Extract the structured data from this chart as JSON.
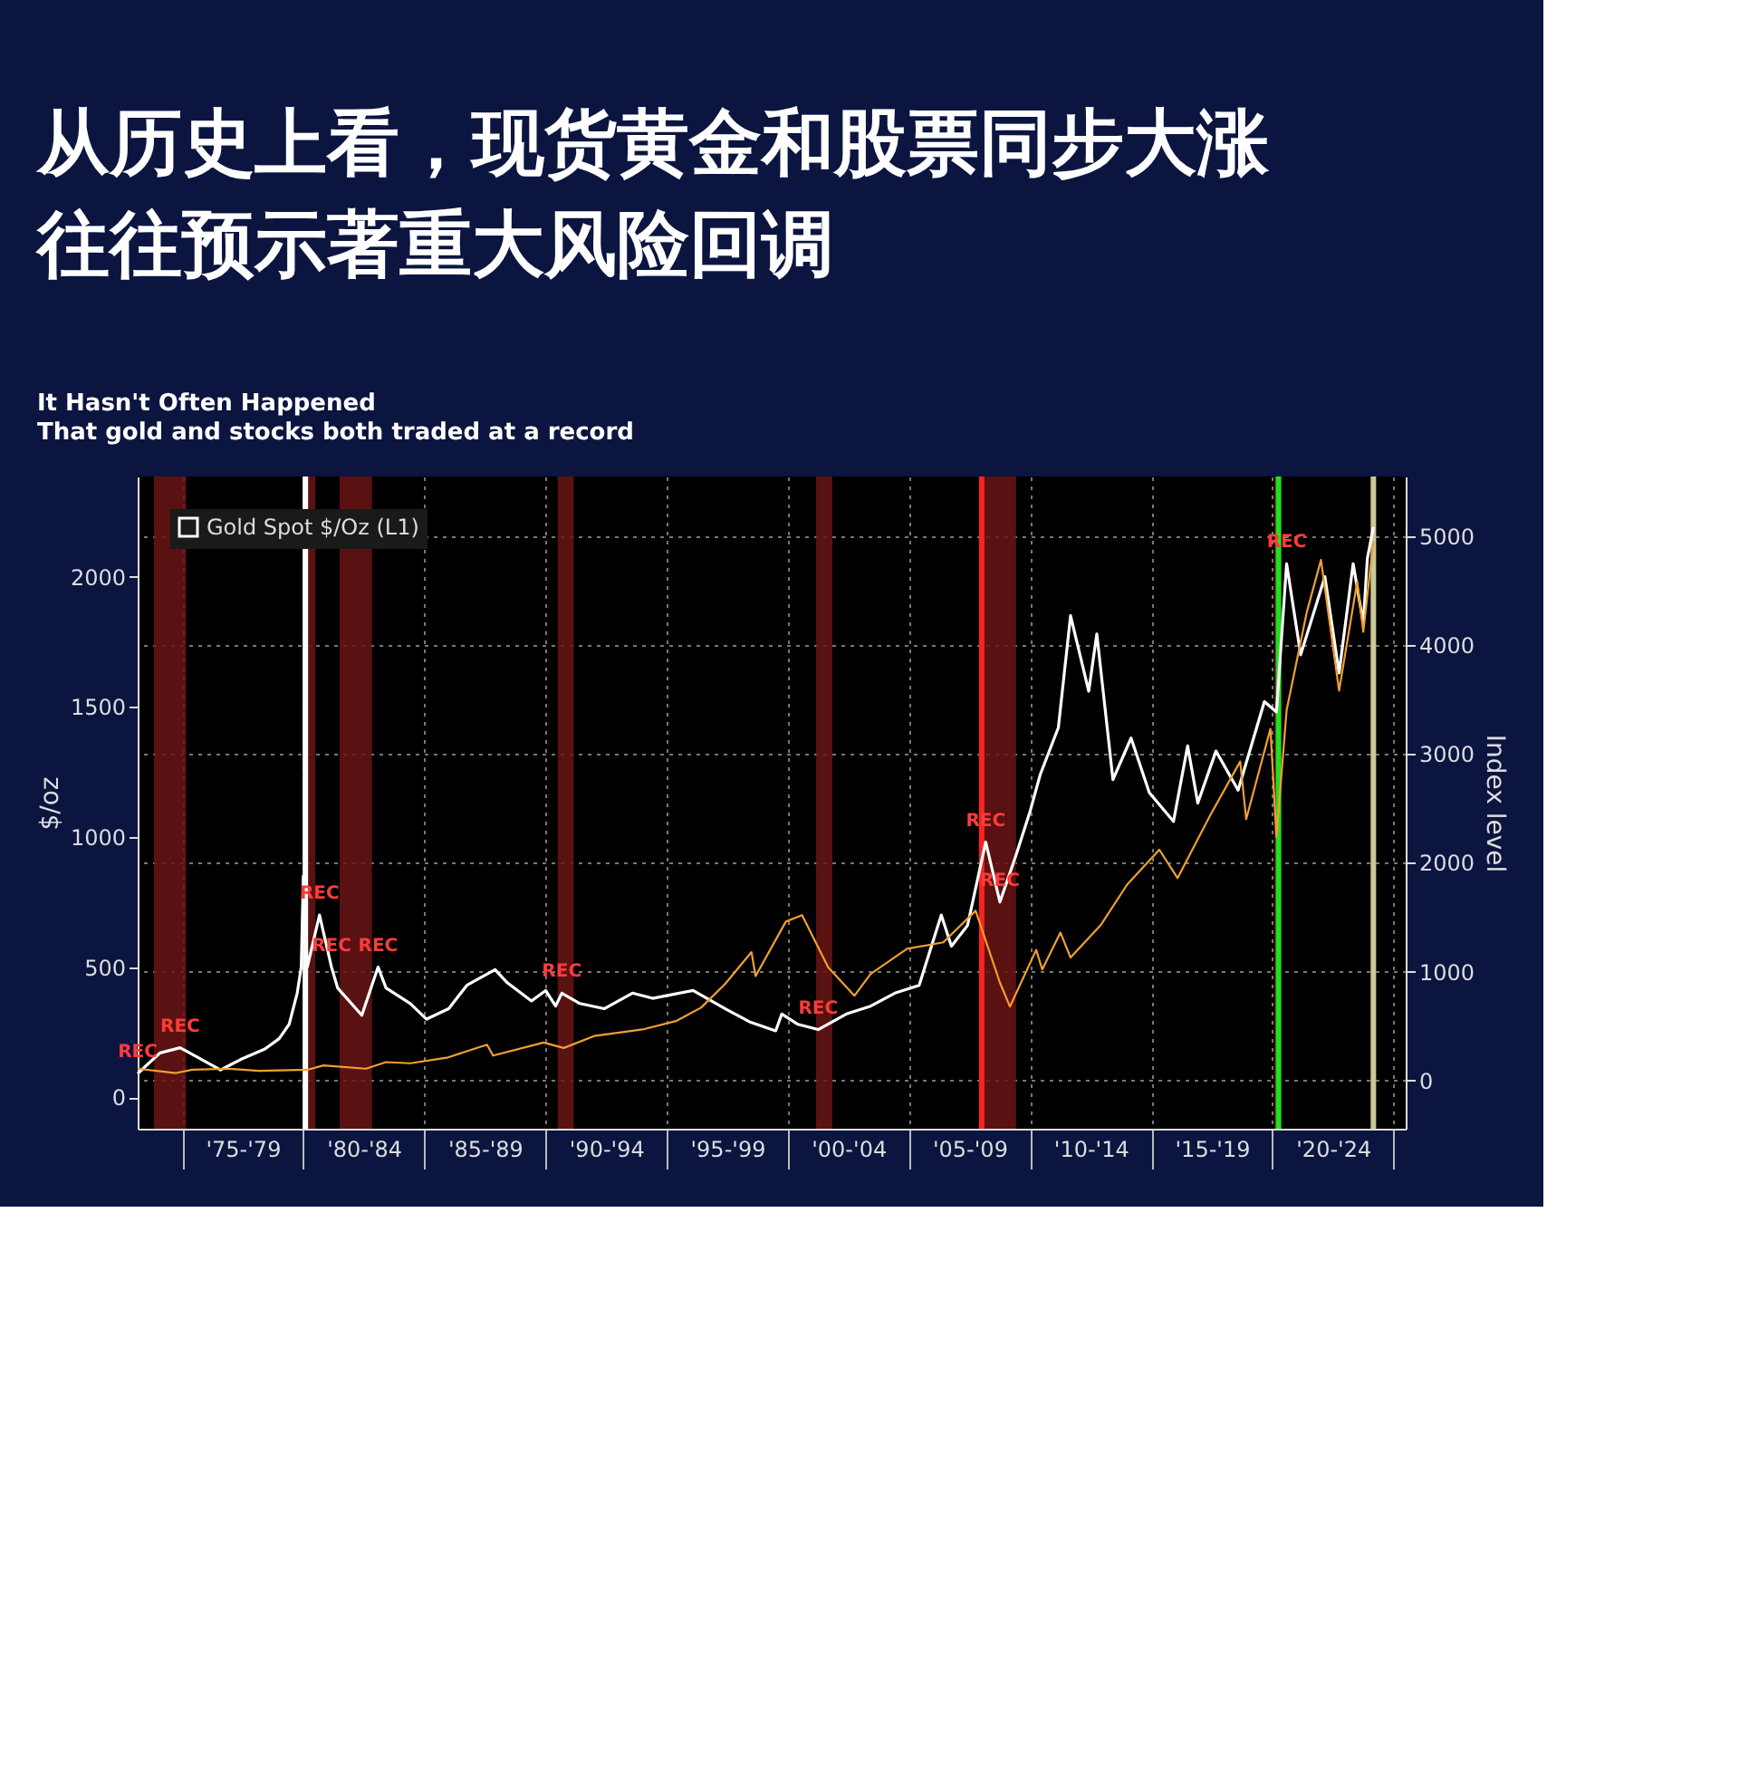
{
  "chart_data": {
    "type": "line",
    "title": "从历史上看，现货黄金和股票同步大涨往往预示著重大风险回调",
    "subtitle": "It Hasn't Often Happened\nThat gold and stocks both traded at a record",
    "ylabel": "$/oz",
    "y2label": "Index level",
    "xlim": [
      "1973-03",
      "2025-07"
    ],
    "xticks": [
      {
        "value": "1975-01",
        "label": null
      },
      {
        "value": "1977-07",
        "label": "'75-'79"
      },
      {
        "value": "1980-01",
        "label": null
      },
      {
        "value": "1982-07",
        "label": "'80-'84"
      },
      {
        "value": "1985-01",
        "label": null
      },
      {
        "value": "1987-07",
        "label": "'85-'89"
      },
      {
        "value": "1990-01",
        "label": null
      },
      {
        "value": "1992-07",
        "label": "'90-'94"
      },
      {
        "value": "1995-01",
        "label": null
      },
      {
        "value": "1997-07",
        "label": "'95-'99"
      },
      {
        "value": "2000-01",
        "label": null
      },
      {
        "value": "2002-07",
        "label": "'00-'04"
      },
      {
        "value": "2005-01",
        "label": null
      },
      {
        "value": "2007-07",
        "label": "'05-'09"
      },
      {
        "value": "2010-01",
        "label": null
      },
      {
        "value": "2012-07",
        "label": "'10-'14"
      },
      {
        "value": "2015-01",
        "label": null
      },
      {
        "value": "2017-07",
        "label": "'15-'19"
      },
      {
        "value": "2020-01",
        "label": null
      },
      {
        "value": "2022-07",
        "label": "'20-'24"
      },
      {
        "value": "2025-01",
        "label": null
      }
    ],
    "ylim": [
      -121,
      2385
    ],
    "yticks": [
      0,
      500,
      1000,
      1500,
      2000
    ],
    "y2lim": [
      -441,
      5546
    ],
    "y2ticks": [
      0,
      1000,
      2000,
      3000,
      4000,
      5000
    ],
    "grid": true,
    "legend": "top left",
    "series": [
      {
        "name": "Gold Spot $/Oz (L1)",
        "color": "#ffffff",
        "x": [
          "1973-03",
          "1973-07",
          "1974-02",
          "1974-12",
          "1975-06",
          "1976-08",
          "1977-06",
          "1978-06",
          "1979-01",
          "1979-06",
          "1979-10",
          "1979-12",
          "1980-01",
          "1980-03",
          "1980-09",
          "1981-03",
          "1981-06",
          "1982-06",
          "1983-02",
          "1983-06",
          "1984-06",
          "1985-02",
          "1986-01",
          "1986-10",
          "1987-12",
          "1988-06",
          "1989-06",
          "1990-01",
          "1990-06",
          "1990-09",
          "1991-06",
          "1992-06",
          "1993-08",
          "1994-06",
          "1996-02",
          "1997-06",
          "1998-06",
          "1999-07",
          "1999-10",
          "2000-06",
          "2001-04",
          "2002-06",
          "2003-06",
          "2004-06",
          "2005-06",
          "2006-05",
          "2006-10",
          "2007-06",
          "2008-03",
          "2008-10",
          "2009-06",
          "2010-01",
          "2010-06",
          "2011-03",
          "2011-09",
          "2012-06",
          "2012-10",
          "2013-06",
          "2014-03",
          "2014-12",
          "2015-12",
          "2016-07",
          "2016-12",
          "2017-09",
          "2018-08",
          "2019-09",
          "2020-03",
          "2020-08",
          "2021-03",
          "2022-03",
          "2022-10",
          "2023-05",
          "2023-10",
          "2023-12",
          "2024-03"
        ],
        "values": [
          90,
          120,
          170,
          190,
          165,
          105,
          145,
          185,
          225,
          280,
          400,
          500,
          850,
          500,
          700,
          500,
          420,
          315,
          500,
          420,
          360,
          300,
          340,
          430,
          490,
          440,
          370,
          410,
          350,
          400,
          360,
          340,
          400,
          380,
          410,
          340,
          290,
          255,
          320,
          280,
          260,
          320,
          350,
          400,
          430,
          700,
          580,
          660,
          980,
          750,
          930,
          1100,
          1240,
          1420,
          1850,
          1560,
          1780,
          1220,
          1380,
          1170,
          1060,
          1350,
          1130,
          1330,
          1180,
          1520,
          1480,
          2050,
          1700,
          2000,
          1630,
          2050,
          1820,
          2070,
          2190
        ]
      },
      {
        "color": "#f0a030",
        "axis": "y2",
        "x": [
          "1973-03",
          "1974-10",
          "1975-06",
          "1976-12",
          "1978-03",
          "1980-03",
          "1980-11",
          "1982-08",
          "1983-06",
          "1984-06",
          "1985-12",
          "1987-08",
          "1987-11",
          "1989-12",
          "1990-10",
          "1992-01",
          "1994-01",
          "1995-06",
          "1996-06",
          "1997-06",
          "1998-07",
          "1998-09",
          "1999-12",
          "2000-08",
          "2001-09",
          "2002-10",
          "2003-06",
          "2004-12",
          "2006-06",
          "2007-10",
          "2008-10",
          "2009-03",
          "2010-04",
          "2010-07",
          "2011-04",
          "2011-09",
          "2012-12",
          "2014-01",
          "2015-05",
          "2016-02",
          "2017-06",
          "2018-09",
          "2018-12",
          "2019-12",
          "2020-03",
          "2020-08",
          "2021-06",
          "2022-01",
          "2022-10",
          "2023-07",
          "2023-10",
          "2024-03"
        ],
        "values": [
          110,
          70,
          100,
          110,
          90,
          100,
          140,
          110,
          170,
          160,
          210,
          330,
          230,
          350,
          300,
          410,
          470,
          550,
          670,
          890,
          1180,
          960,
          1460,
          1520,
          1040,
          780,
          980,
          1210,
          1270,
          1560,
          900,
          680,
          1200,
          1020,
          1360,
          1130,
          1430,
          1800,
          2120,
          1860,
          2430,
          2930,
          2400,
          3230,
          2240,
          3400,
          4300,
          4780,
          3580,
          4580,
          4120,
          4950
        ]
      }
    ],
    "bands": [
      {
        "axis": "x",
        "from": "1973-11",
        "to": "1975-03",
        "color": "#6a1414"
      },
      {
        "axis": "x",
        "from": "1980-01",
        "to": "1980-07",
        "color": "#6a1414"
      },
      {
        "axis": "x",
        "from": "1981-07",
        "to": "1982-11",
        "color": "#6a1414"
      },
      {
        "axis": "x",
        "from": "1990-07",
        "to": "1991-03",
        "color": "#6a1414"
      },
      {
        "axis": "x",
        "from": "2001-03",
        "to": "2001-11",
        "color": "#6a1414"
      },
      {
        "axis": "x",
        "from": "2007-12",
        "to": "2009-06",
        "color": "#6a1414"
      },
      {
        "axis": "x",
        "from": "2020-02",
        "to": "2020-04",
        "color": "#6a1414"
      }
    ],
    "ref_lines": [
      {
        "axis": "x",
        "value": "1980-02",
        "color": "#ffffff"
      },
      {
        "axis": "x",
        "value": "2008-01",
        "color": "#ff2020"
      },
      {
        "axis": "x",
        "value": "2020-04",
        "color": "#20e020"
      },
      {
        "axis": "x",
        "value": "2024-03",
        "color": "#c8c89a"
      }
    ],
    "annotations": [
      {
        "text": "REC",
        "x": "1974-12",
        "y": 190
      },
      {
        "text": "REC",
        "x": "1973-03",
        "y": 90
      },
      {
        "text": "REC",
        "x": "1980-09",
        "y": 700
      },
      {
        "text": "REC",
        "x": "1981-03",
        "y": 500
      },
      {
        "text": "REC",
        "x": "1983-02",
        "y": 500
      },
      {
        "text": "REC",
        "x": "1990-09",
        "y": 400
      },
      {
        "text": "REC",
        "x": "2001-04",
        "y": 260
      },
      {
        "text": "REC",
        "x": "2008-03",
        "y": 980
      },
      {
        "text": "REC",
        "x": "2008-10",
        "y": 750
      },
      {
        "text": "REC",
        "x": "2020-08",
        "y": 2050
      }
    ]
  }
}
